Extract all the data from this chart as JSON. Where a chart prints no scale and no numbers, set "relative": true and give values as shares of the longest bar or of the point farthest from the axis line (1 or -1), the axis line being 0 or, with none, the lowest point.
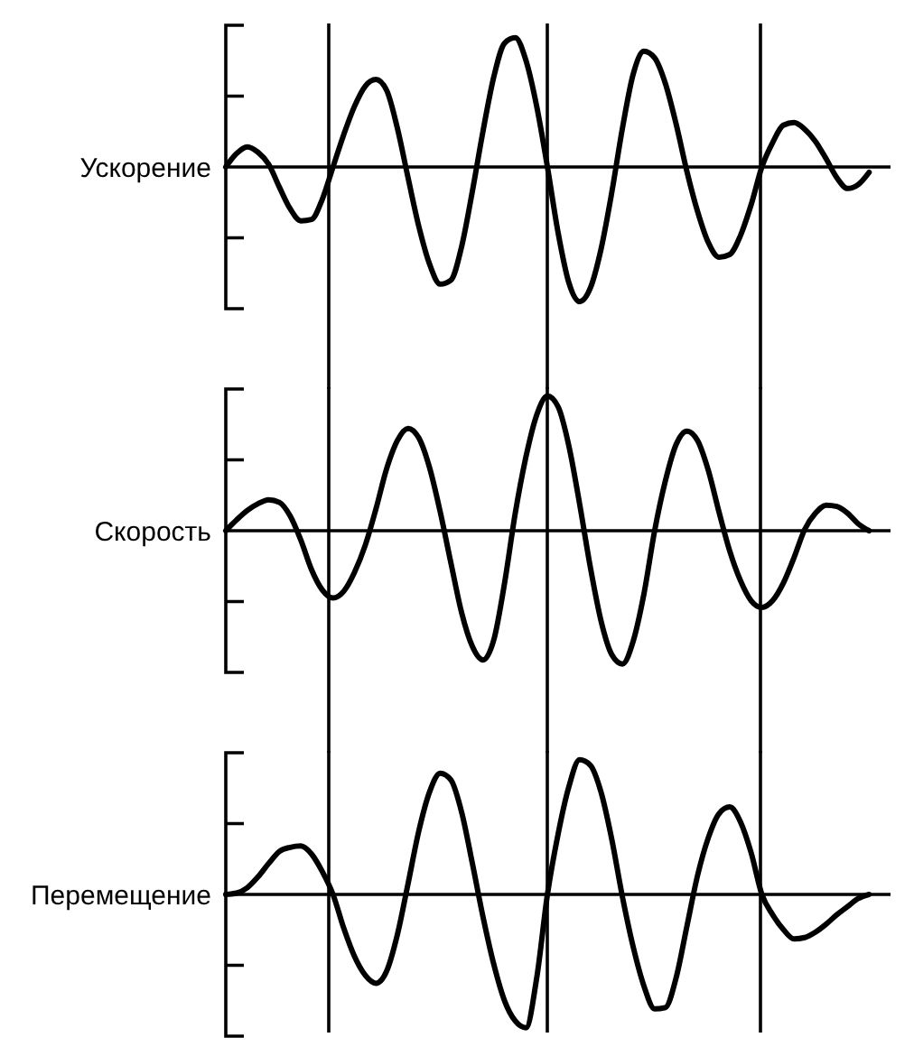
{
  "chart_data": [
    {
      "type": "line",
      "ylabel": "Ускорение",
      "relative": true,
      "categories": [
        null,
        null,
        null,
        null,
        null,
        null,
        null,
        null,
        null,
        null,
        null,
        null,
        null,
        null,
        null,
        null,
        null,
        null,
        null,
        null,
        null,
        null,
        null,
        null,
        null,
        null,
        null,
        null,
        null,
        null,
        null,
        null,
        null,
        null,
        null,
        null,
        null,
        null,
        null,
        null,
        null,
        null,
        null,
        null,
        null,
        null,
        null,
        null,
        null,
        null,
        null,
        null,
        null,
        null,
        null,
        null,
        null,
        null,
        null,
        null,
        null
      ],
      "series": [
        {
          "color": "#000000",
          "values": [
            0,
            0.1,
            0.15,
            0.11,
            0.02,
            -0.15,
            -0.31,
            -0.4,
            -0.39,
            -0.24,
            0,
            0.24,
            0.45,
            0.6,
            0.65,
            0.57,
            0.29,
            -0.08,
            -0.44,
            -0.72,
            -0.87,
            -0.84,
            -0.59,
            -0.18,
            0.27,
            0.67,
            0.92,
            0.96,
            0.79,
            0.45,
            0,
            -0.49,
            -0.86,
            -1,
            -0.9,
            -0.61,
            -0.19,
            0.29,
            0.69,
            0.86,
            0.81,
            0.62,
            0.32,
            -0.03,
            -0.33,
            -0.56,
            -0.67,
            -0.65,
            -0.51,
            -0.28,
            0,
            0.18,
            0.31,
            0.33,
            0.28,
            0.19,
            0.06,
            -0.08,
            -0.16,
            -0.13,
            -0.04
          ]
        }
      ]
    },
    {
      "type": "line",
      "ylabel": "Скорость",
      "relative": true,
      "categories": [
        null,
        null,
        null,
        null,
        null,
        null,
        null,
        null,
        null,
        null,
        null,
        null,
        null,
        null,
        null,
        null,
        null,
        null,
        null,
        null,
        null,
        null,
        null,
        null,
        null,
        null,
        null,
        null,
        null,
        null,
        null,
        null,
        null,
        null,
        null,
        null,
        null,
        null,
        null,
        null,
        null,
        null,
        null,
        null,
        null,
        null,
        null,
        null,
        null,
        null,
        null,
        null,
        null,
        null,
        null,
        null,
        null,
        null,
        null,
        null,
        null
      ],
      "series": [
        {
          "color": "#000000",
          "values": [
            0,
            0.08,
            0.15,
            0.2,
            0.23,
            0.21,
            0.11,
            -0.07,
            -0.29,
            -0.44,
            -0.5,
            -0.45,
            -0.31,
            -0.11,
            0.16,
            0.46,
            0.67,
            0.76,
            0.69,
            0.47,
            0.14,
            -0.24,
            -0.61,
            -0.86,
            -0.96,
            -0.81,
            -0.39,
            0.13,
            0.55,
            0.86,
            1,
            0.92,
            0.63,
            0.2,
            -0.27,
            -0.67,
            -0.92,
            -0.99,
            -0.82,
            -0.47,
            0,
            0.37,
            0.64,
            0.74,
            0.67,
            0.45,
            0.14,
            -0.15,
            -0.37,
            -0.52,
            -0.57,
            -0.52,
            -0.39,
            -0.2,
            0.01,
            0.13,
            0.19,
            0.18,
            0.13,
            0.05,
            0
          ]
        }
      ]
    },
    {
      "type": "line",
      "ylabel": "Перемещение",
      "relative": true,
      "categories": [
        null,
        null,
        null,
        null,
        null,
        null,
        null,
        null,
        null,
        null,
        null,
        null,
        null,
        null,
        null,
        null,
        null,
        null,
        null,
        null,
        null,
        null,
        null,
        null,
        null,
        null,
        null,
        null,
        null,
        null,
        null,
        null,
        null,
        null,
        null,
        null,
        null,
        null,
        null,
        null,
        null,
        null,
        null,
        null,
        null,
        null,
        null,
        null,
        null,
        null,
        null,
        null,
        null,
        null,
        null,
        null,
        null,
        null,
        null,
        null,
        null
      ],
      "series": [
        {
          "color": "#000000",
          "values": [
            0,
            0.01,
            0.05,
            0.13,
            0.23,
            0.32,
            0.35,
            0.36,
            0.3,
            0.17,
            0,
            -0.25,
            -0.46,
            -0.6,
            -0.66,
            -0.57,
            -0.3,
            0.08,
            0.47,
            0.76,
            0.9,
            0.85,
            0.61,
            0.23,
            -0.17,
            -0.52,
            -0.79,
            -0.94,
            -0.99,
            -0.62,
            0,
            0.45,
            0.8,
            1,
            0.96,
            0.76,
            0.41,
            -0.02,
            -0.39,
            -0.68,
            -0.85,
            -0.84,
            -0.62,
            -0.24,
            0.14,
            0.42,
            0.6,
            0.65,
            0.54,
            0.31,
            0,
            -0.15,
            -0.26,
            -0.33,
            -0.32,
            -0.28,
            -0.22,
            -0.15,
            -0.09,
            -0.03,
            0
          ]
        }
      ]
    }
  ]
}
